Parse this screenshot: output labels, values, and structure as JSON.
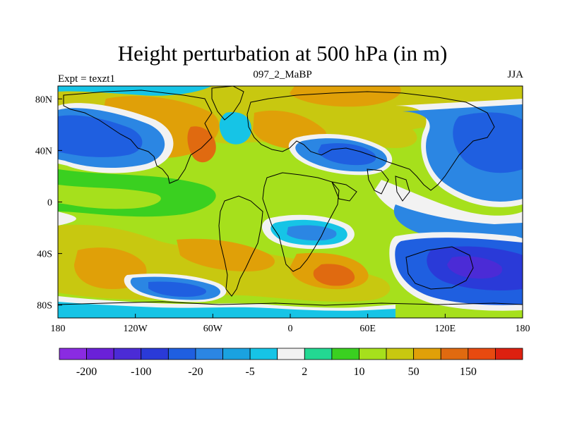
{
  "title": "Height perturbation at 500 hPa (in m)",
  "subtitle_left": "Expt = texzt1",
  "subtitle_center": "097_2_MaBP",
  "subtitle_right": "JJA",
  "map": {
    "lon_range": [
      -180,
      180
    ],
    "lat_range": [
      -90,
      90
    ],
    "x_ticks": [
      {
        "value": -180,
        "label": "180"
      },
      {
        "value": -120,
        "label": "120W"
      },
      {
        "value": -60,
        "label": "60W"
      },
      {
        "value": 0,
        "label": "0"
      },
      {
        "value": 60,
        "label": "60E"
      },
      {
        "value": 120,
        "label": "120E"
      },
      {
        "value": 180,
        "label": "180"
      }
    ],
    "y_ticks": [
      {
        "value": 80,
        "label": "80N"
      },
      {
        "value": 40,
        "label": "40N"
      },
      {
        "value": 0,
        "label": "0"
      },
      {
        "value": -40,
        "label": "40S"
      },
      {
        "value": -80,
        "label": "80S"
      }
    ]
  },
  "colorbar": {
    "colors": [
      "#8a2be2",
      "#6a20d8",
      "#4b2bd6",
      "#2a3ad8",
      "#1f5fe0",
      "#2b86e3",
      "#1aa2e0",
      "#16c4e6",
      "#f2f2f2",
      "#23d892",
      "#3ad020",
      "#a6e01c",
      "#c8c810",
      "#e0a008",
      "#e06a10",
      "#e84a10",
      "#dd2010"
    ],
    "labels": [
      {
        "boundary": 1,
        "text": "-200"
      },
      {
        "boundary": 3,
        "text": "-100"
      },
      {
        "boundary": 5,
        "text": "-20"
      },
      {
        "boundary": 7,
        "text": "-5"
      },
      {
        "boundary": 9,
        "text": "2"
      },
      {
        "boundary": 11,
        "text": "10"
      },
      {
        "boundary": 13,
        "text": "50"
      },
      {
        "boundary": 15,
        "text": "150"
      }
    ]
  }
}
